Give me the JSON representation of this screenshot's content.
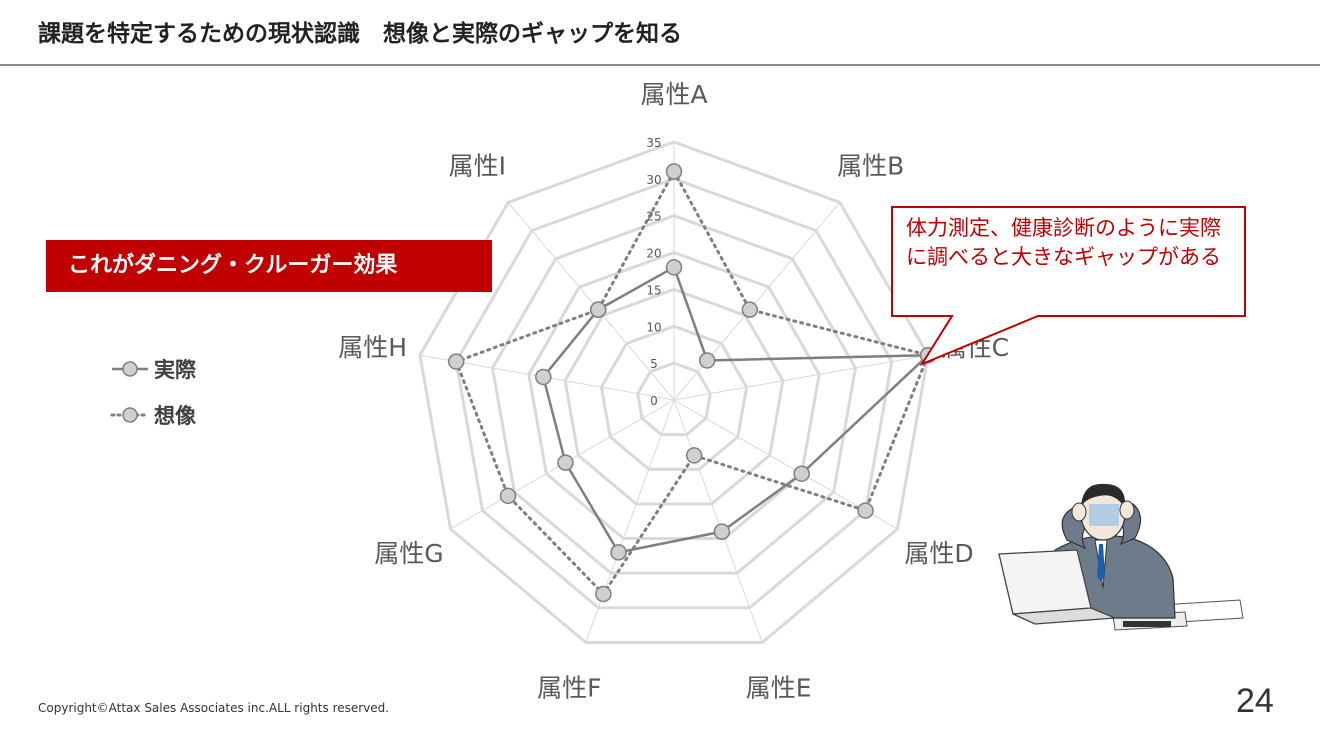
{
  "header": {
    "title": "課題を特定するための現状認識　想像と実際のギャップを知る"
  },
  "callout_banner": "これがダニング・クルーガー効果",
  "legend": {
    "actual": "実際",
    "imagined": "想像"
  },
  "note": "体力測定、健康診断のように実際に調べると大きなギャップがある",
  "footer": {
    "copyright": "Copyright©Attax Sales Associates inc.ALL rights reserved.",
    "page_number": "24"
  },
  "colors": {
    "accent": "#c00000",
    "grid": "#d9d9d9",
    "series_line": "#7f7f7f",
    "marker_fill": "#d0d0d0"
  },
  "chart_data": {
    "type": "radar",
    "categories": [
      "属性A",
      "属性B",
      "属性C",
      "属性D",
      "属性E",
      "属性F",
      "属性G",
      "属性H",
      "属性I"
    ],
    "r_ticks": [
      0,
      5,
      10,
      15,
      20,
      25,
      30,
      35
    ],
    "rlim": [
      0,
      35
    ],
    "grid": true,
    "series": [
      {
        "name": "実際",
        "style": "solid",
        "values": [
          18,
          7,
          35,
          20,
          19,
          22,
          17,
          18,
          16
        ]
      },
      {
        "name": "想像",
        "style": "dotted",
        "values": [
          31,
          16,
          35,
          30,
          8,
          28,
          26,
          30,
          16
        ]
      }
    ]
  }
}
